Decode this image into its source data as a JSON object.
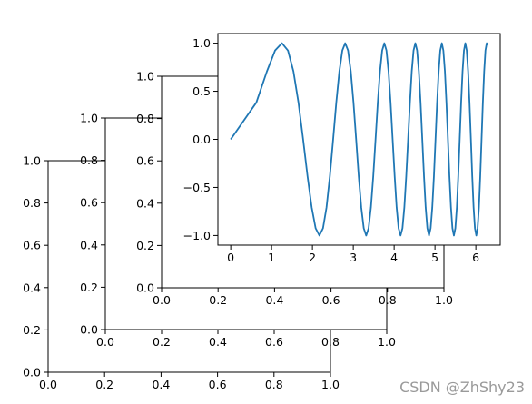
{
  "chart_data": [
    {
      "type": "line",
      "xlim": [
        0,
        1
      ],
      "ylim": [
        0,
        1
      ],
      "xticks": [
        {
          "value": 0,
          "label": "0.0"
        },
        0.2,
        0.4,
        0.6,
        0.8,
        {
          "value": 1,
          "label": "1.0"
        }
      ],
      "yticks": [
        {
          "value": 0,
          "label": "0.0"
        },
        0.2,
        0.4,
        0.6,
        0.8,
        {
          "value": 1,
          "label": "1.0"
        }
      ]
    },
    {
      "type": "line",
      "xlim": [
        0,
        1
      ],
      "ylim": [
        0,
        1
      ],
      "xticks": [
        {
          "value": 0,
          "label": "0.0"
        },
        0.2,
        0.4,
        0.6,
        0.8,
        {
          "value": 1,
          "label": "1.0"
        }
      ],
      "yticks": [
        {
          "value": 0,
          "label": "0.0"
        },
        0.2,
        0.4,
        0.6,
        0.8,
        {
          "value": 1,
          "label": "1.0"
        }
      ]
    },
    {
      "type": "line",
      "xlim": [
        0,
        1
      ],
      "ylim": [
        0,
        1
      ],
      "xticks": [
        {
          "value": 0,
          "label": "0.0"
        },
        0.2,
        0.4,
        0.6,
        0.8,
        {
          "value": 1,
          "label": "1.0"
        }
      ],
      "yticks": [
        {
          "value": 0,
          "label": "0.0"
        },
        0.2,
        0.4,
        0.6,
        0.8,
        {
          "value": 1,
          "label": "1.0"
        }
      ]
    },
    {
      "type": "line",
      "xlim": [
        -0.314,
        6.597
      ],
      "ylim": [
        -1.1,
        1.1
      ],
      "xticks": [
        0,
        1,
        2,
        3,
        4,
        5,
        6
      ],
      "yticks": [
        {
          "value": -1,
          "label": "−1.0"
        },
        {
          "value": -0.5,
          "label": "−0.5"
        },
        {
          "value": 0,
          "label": "0.0"
        },
        0.5,
        {
          "value": 1,
          "label": "1.0"
        }
      ],
      "color": "#1f77b4",
      "x": [
        0,
        0.627,
        0.886,
        1.085,
        1.253,
        1.401,
        1.535,
        1.658,
        1.772,
        1.88,
        1.982,
        2.078,
        2.171,
        2.259,
        2.345,
        2.427,
        2.507,
        2.584,
        2.659,
        2.732,
        2.802,
        2.872,
        2.939,
        3.005,
        3.07,
        3.133,
        3.195,
        3.256,
        3.316,
        3.375,
        3.432,
        3.489,
        3.545,
        3.6,
        3.654,
        3.707,
        3.76,
        3.812,
        3.863,
        3.913,
        3.963,
        4.013,
        4.061,
        4.109,
        4.157,
        4.204,
        4.25,
        4.296,
        4.342,
        4.387,
        4.431,
        4.475,
        4.519,
        4.562,
        4.605,
        4.647,
        4.689,
        4.731,
        4.772,
        4.813,
        4.854,
        4.894,
        4.934,
        4.974,
        5.013,
        5.052,
        5.091,
        5.129,
        5.168,
        5.205,
        5.243,
        5.28,
        5.317,
        5.354,
        5.391,
        5.427,
        5.463,
        5.499,
        5.535,
        5.57,
        5.605,
        5.64,
        5.675,
        5.709,
        5.743,
        5.777,
        5.811,
        5.845,
        5.879,
        5.912,
        5.945,
        5.978,
        6.011,
        6.043,
        6.076,
        6.108,
        6.14,
        6.172,
        6.204,
        6.235,
        6.267,
        6.283
      ],
      "values": [
        0,
        0.383,
        0.707,
        0.924,
        1,
        0.924,
        0.707,
        0.383,
        0,
        -0.383,
        -0.707,
        -0.924,
        -1,
        -0.924,
        -0.707,
        -0.383,
        0,
        0.383,
        0.707,
        0.924,
        1,
        0.924,
        0.707,
        0.383,
        0,
        -0.383,
        -0.707,
        -0.924,
        -1,
        -0.924,
        -0.707,
        -0.383,
        0,
        0.383,
        0.707,
        0.924,
        1,
        0.924,
        0.707,
        0.383,
        0,
        -0.383,
        -0.707,
        -0.924,
        -1,
        -0.924,
        -0.707,
        -0.383,
        0,
        0.383,
        0.707,
        0.924,
        1,
        0.924,
        0.707,
        0.383,
        0,
        -0.383,
        -0.707,
        -0.924,
        -1,
        -0.924,
        -0.707,
        -0.383,
        0,
        0.383,
        0.707,
        0.924,
        1,
        0.924,
        0.707,
        0.383,
        0,
        -0.383,
        -0.707,
        -0.924,
        -1,
        -0.924,
        -0.707,
        -0.383,
        0,
        0.383,
        0.707,
        0.924,
        1,
        0.924,
        0.707,
        0.383,
        0,
        -0.383,
        -0.707,
        -0.924,
        -1,
        -0.924,
        -0.707,
        -0.383,
        0,
        0.383,
        0.707,
        0.924,
        1,
        0.978
      ]
    }
  ],
  "watermark": "CSDN @ZhShy23"
}
